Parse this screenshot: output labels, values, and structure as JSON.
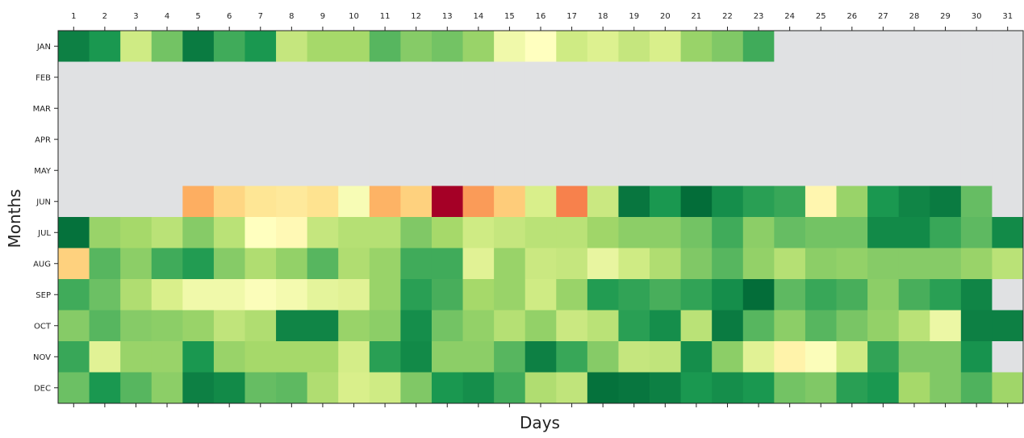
{
  "chart_data": {
    "type": "heatmap",
    "title": "",
    "xlabel": "Days",
    "ylabel": "Months",
    "x_categories": [
      "1",
      "2",
      "3",
      "4",
      "5",
      "6",
      "7",
      "8",
      "9",
      "10",
      "11",
      "12",
      "13",
      "14",
      "15",
      "16",
      "17",
      "18",
      "19",
      "20",
      "21",
      "22",
      "23",
      "24",
      "25",
      "26",
      "27",
      "28",
      "29",
      "30",
      "31"
    ],
    "y_categories": [
      "JAN",
      "FEB",
      "MAR",
      "APR",
      "MAY",
      "JUN",
      "JUL",
      "AUG",
      "SEP",
      "OCT",
      "NOV",
      "DEC"
    ],
    "x_ticks_position": "top-and-bottom",
    "missing_color": "#e0e1e3",
    "colormap": {
      "name": "RdYlGn",
      "stops": [
        "#a50026",
        "#d73027",
        "#f46d43",
        "#fdae61",
        "#fee08b",
        "#ffffbf",
        "#d9ef8b",
        "#a6d96a",
        "#66bd63",
        "#1a9850",
        "#006837"
      ]
    },
    "value_range": [
      0,
      1
    ],
    "grid": false,
    "legend": "none",
    "values": [
      [
        0.95,
        0.9,
        0.62,
        0.78,
        0.96,
        0.85,
        0.9,
        0.64,
        0.7,
        0.7,
        0.82,
        0.75,
        0.78,
        0.72,
        0.54,
        0.5,
        0.62,
        0.59,
        0.64,
        0.6,
        0.72,
        0.76,
        0.85,
        null,
        null,
        null,
        null,
        null,
        null,
        null,
        null
      ],
      [
        null,
        null,
        null,
        null,
        null,
        null,
        null,
        null,
        null,
        null,
        null,
        null,
        null,
        null,
        null,
        null,
        null,
        null,
        null,
        null,
        null,
        null,
        null,
        null,
        null,
        null,
        null,
        null,
        null,
        null,
        null
      ],
      [
        null,
        null,
        null,
        null,
        null,
        null,
        null,
        null,
        null,
        null,
        null,
        null,
        null,
        null,
        null,
        null,
        null,
        null,
        null,
        null,
        null,
        null,
        null,
        null,
        null,
        null,
        null,
        null,
        null,
        null,
        null
      ],
      [
        null,
        null,
        null,
        null,
        null,
        null,
        null,
        null,
        null,
        null,
        null,
        null,
        null,
        null,
        null,
        null,
        null,
        null,
        null,
        null,
        null,
        null,
        null,
        null,
        null,
        null,
        null,
        null,
        null,
        null,
        null
      ],
      [
        null,
        null,
        null,
        null,
        null,
        null,
        null,
        null,
        null,
        null,
        null,
        null,
        null,
        null,
        null,
        null,
        null,
        null,
        null,
        null,
        null,
        null,
        null,
        null,
        null,
        null,
        null,
        null,
        null,
        null,
        null
      ],
      [
        null,
        null,
        null,
        null,
        0.3,
        0.38,
        0.42,
        0.43,
        0.41,
        0.52,
        0.31,
        0.37,
        0.0,
        0.27,
        0.36,
        0.6,
        0.23,
        0.63,
        0.97,
        0.9,
        0.99,
        0.92,
        0.88,
        0.86,
        0.47,
        0.72,
        0.9,
        0.94,
        0.96,
        0.8,
        null
      ],
      [
        0.98,
        0.72,
        0.7,
        0.66,
        0.75,
        0.66,
        0.5,
        0.48,
        0.64,
        0.67,
        0.67,
        0.76,
        0.7,
        0.62,
        0.64,
        0.66,
        0.66,
        0.71,
        0.74,
        0.74,
        0.78,
        0.85,
        0.74,
        0.8,
        0.78,
        0.78,
        0.93,
        0.93,
        0.86,
        0.81,
        0.93
      ],
      [
        0.37,
        0.82,
        0.74,
        0.85,
        0.89,
        0.75,
        0.68,
        0.73,
        0.82,
        0.68,
        0.72,
        0.85,
        0.85,
        0.58,
        0.72,
        0.63,
        0.64,
        0.56,
        0.62,
        0.68,
        0.76,
        0.82,
        0.73,
        0.67,
        0.74,
        0.73,
        0.75,
        0.75,
        0.75,
        0.72,
        0.66
      ],
      [
        0.85,
        0.79,
        0.68,
        0.6,
        0.54,
        0.54,
        0.51,
        0.53,
        0.57,
        0.58,
        0.72,
        0.88,
        0.84,
        0.7,
        0.72,
        0.62,
        0.72,
        0.89,
        0.87,
        0.84,
        0.87,
        0.92,
        0.99,
        0.81,
        0.86,
        0.84,
        0.74,
        0.84,
        0.88,
        0.94,
        null
      ],
      [
        0.75,
        0.82,
        0.75,
        0.74,
        0.72,
        0.65,
        0.68,
        0.94,
        0.94,
        0.72,
        0.74,
        0.92,
        0.78,
        0.73,
        0.67,
        0.73,
        0.63,
        0.66,
        0.88,
        0.92,
        0.66,
        0.96,
        0.82,
        0.74,
        0.82,
        0.77,
        0.73,
        0.66,
        0.55,
        0.95,
        0.95
      ],
      [
        0.86,
        0.58,
        0.72,
        0.72,
        0.9,
        0.72,
        0.7,
        0.7,
        0.7,
        0.61,
        0.88,
        0.93,
        0.74,
        0.74,
        0.82,
        0.95,
        0.86,
        0.75,
        0.64,
        0.65,
        0.92,
        0.74,
        0.58,
        0.46,
        0.51,
        0.62,
        0.87,
        0.76,
        0.76,
        0.91,
        null
      ],
      [
        0.79,
        0.9,
        0.82,
        0.74,
        0.95,
        0.93,
        0.8,
        0.81,
        0.68,
        0.6,
        0.62,
        0.76,
        0.9,
        0.92,
        0.85,
        0.68,
        0.65,
        0.98,
        0.97,
        0.95,
        0.9,
        0.92,
        0.9,
        0.78,
        0.76,
        0.88,
        0.9,
        0.7,
        0.76,
        0.83,
        0.71
      ]
    ]
  }
}
